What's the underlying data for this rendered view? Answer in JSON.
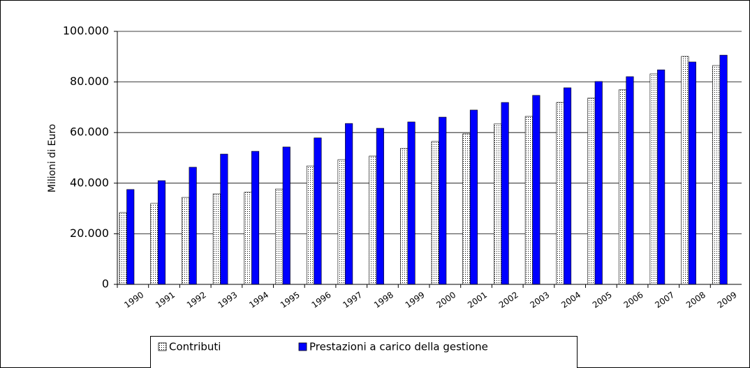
{
  "chart_data": {
    "type": "bar",
    "y_label": "Milioni di Euro",
    "categories": [
      "1990",
      "1991",
      "1992",
      "1993",
      "1994",
      "1995",
      "1996",
      "1997",
      "1998",
      "1999",
      "2000",
      "2001",
      "2002",
      "2003",
      "2004",
      "2005",
      "2006",
      "2007",
      "2008",
      "2009"
    ],
    "series": [
      {
        "name": "Contributi",
        "color": "#ffffff",
        "values": [
          28400,
          32000,
          34400,
          35800,
          36400,
          37700,
          46800,
          49300,
          50700,
          53700,
          56500,
          59500,
          63400,
          66400,
          71900,
          73600,
          76900,
          83200,
          90100,
          86500
        ]
      },
      {
        "name": "Prestazioni a carico della gestione",
        "color": "#0000ff",
        "values": [
          37500,
          41000,
          46300,
          51500,
          52600,
          54300,
          57900,
          63600,
          61700,
          64200,
          66100,
          68900,
          71900,
          74700,
          77700,
          80200,
          82100,
          84800,
          87900,
          90600
        ]
      }
    ],
    "ylim": [
      0,
      100000
    ],
    "yticks": [
      0,
      {
        "value": 20000,
        "label": "20.000"
      },
      {
        "value": 40000,
        "label": "40.000"
      },
      {
        "value": 60000,
        "label": "60.000"
      },
      {
        "value": 80000,
        "label": "80.000"
      },
      {
        "value": 100000,
        "label": "100.000"
      }
    ],
    "grid": true
  }
}
